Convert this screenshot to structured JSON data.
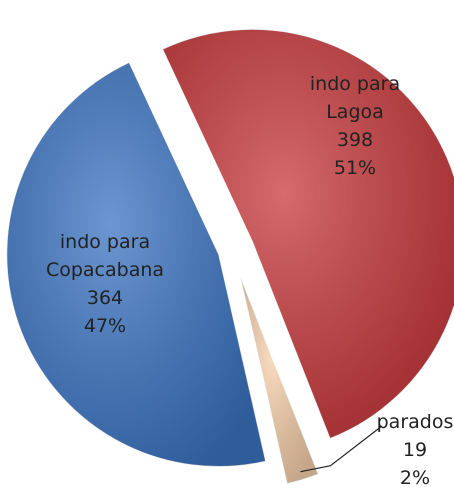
{
  "chart_data": {
    "type": "pie",
    "categories": [
      "indo para Lagoa",
      "parados",
      "indo para Copacabana"
    ],
    "values": [
      398,
      19,
      364
    ],
    "percentages": [
      51,
      2,
      47
    ],
    "percentage_labels": [
      "51%",
      "2%",
      "47%"
    ],
    "colors": [
      "#c8383b",
      "#f6cfaa",
      "#3b74c3"
    ]
  }
}
